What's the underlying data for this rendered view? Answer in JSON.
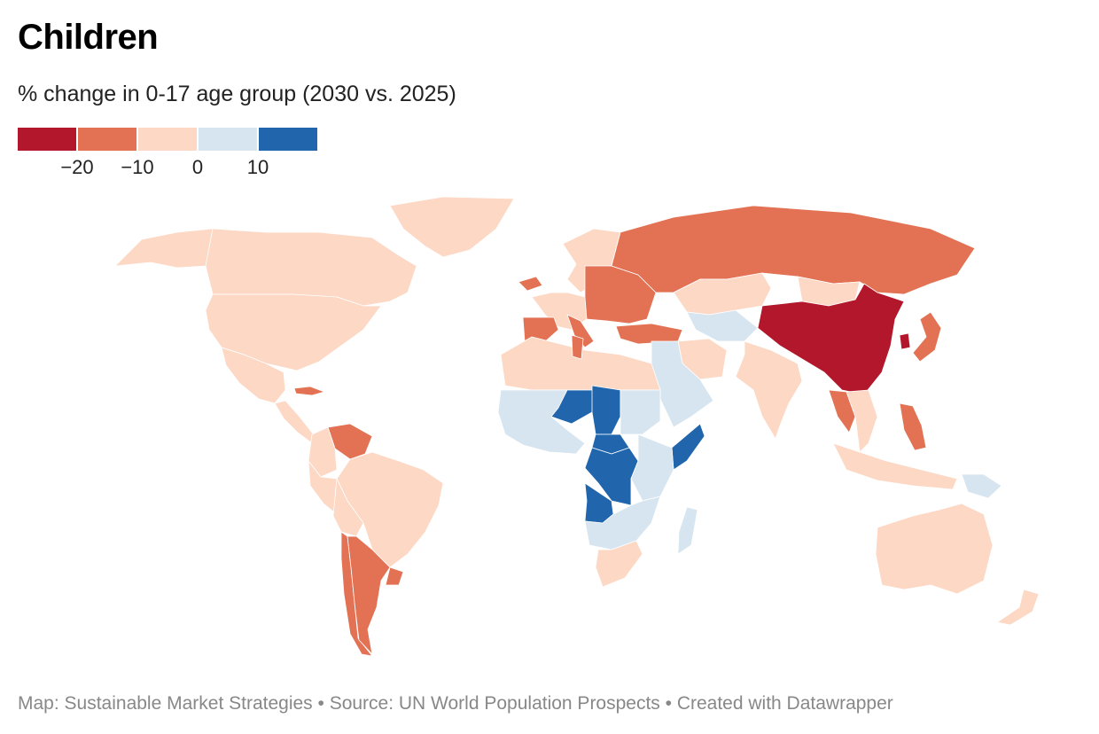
{
  "header": {
    "title": "Children",
    "subtitle": "% change in 0-17 age group (2030 vs. 2025)"
  },
  "legend": {
    "bins": [
      {
        "label": "< -20",
        "color": "#b2172b"
      },
      {
        "label": "-20 to -10",
        "color": "#e27253"
      },
      {
        "label": "-10 to 0",
        "color": "#fcd8c5"
      },
      {
        "label": "0 to 10",
        "color": "#d6e5ef"
      },
      {
        "label": "> 10",
        "color": "#2166ac"
      }
    ],
    "ticks": [
      "−20",
      "−10",
      "0",
      "10"
    ]
  },
  "map_data": {
    "type": "choropleth",
    "variable": "% change in 0-17 age group (2030 vs. 2025)",
    "regions": [
      {
        "name": "Canada",
        "bin": 2
      },
      {
        "name": "United States",
        "bin": 2
      },
      {
        "name": "Alaska",
        "bin": 2
      },
      {
        "name": "Greenland",
        "bin": 2
      },
      {
        "name": "Mexico",
        "bin": 2
      },
      {
        "name": "Cuba",
        "bin": 1
      },
      {
        "name": "Central America",
        "bin": 2
      },
      {
        "name": "Venezuela",
        "bin": 1
      },
      {
        "name": "Colombia",
        "bin": 2
      },
      {
        "name": "Brazil",
        "bin": 2
      },
      {
        "name": "Peru",
        "bin": 2
      },
      {
        "name": "Bolivia",
        "bin": 2
      },
      {
        "name": "Chile",
        "bin": 1
      },
      {
        "name": "Argentina",
        "bin": 1
      },
      {
        "name": "Uruguay",
        "bin": 1
      },
      {
        "name": "Iceland",
        "bin": 1
      },
      {
        "name": "Scandinavia",
        "bin": 2
      },
      {
        "name": "Western Europe",
        "bin": 2
      },
      {
        "name": "Eastern Europe",
        "bin": 1
      },
      {
        "name": "Iberia",
        "bin": 1
      },
      {
        "name": "Italy",
        "bin": 1
      },
      {
        "name": "Turkey",
        "bin": 1
      },
      {
        "name": "Russia",
        "bin": 1
      },
      {
        "name": "Kazakhstan",
        "bin": 2
      },
      {
        "name": "Mongolia",
        "bin": 2
      },
      {
        "name": "China",
        "bin": 0
      },
      {
        "name": "South Korea",
        "bin": 0
      },
      {
        "name": "Japan",
        "bin": 1
      },
      {
        "name": "Central Asia",
        "bin": 3
      },
      {
        "name": "Iran",
        "bin": 2
      },
      {
        "name": "Arabian Peninsula",
        "bin": 3
      },
      {
        "name": "India",
        "bin": 2
      },
      {
        "name": "Thailand",
        "bin": 1
      },
      {
        "name": "Southeast Asia",
        "bin": 2
      },
      {
        "name": "Philippines",
        "bin": 1
      },
      {
        "name": "Indonesia",
        "bin": 2
      },
      {
        "name": "Papua New Guinea",
        "bin": 3
      },
      {
        "name": "Australia",
        "bin": 2
      },
      {
        "name": "New Zealand",
        "bin": 2
      },
      {
        "name": "North Africa",
        "bin": 2
      },
      {
        "name": "Tunisia",
        "bin": 1
      },
      {
        "name": "West Africa",
        "bin": 3
      },
      {
        "name": "Niger",
        "bin": 4
      },
      {
        "name": "Chad",
        "bin": 4
      },
      {
        "name": "Sudan",
        "bin": 3
      },
      {
        "name": "Central African Republic",
        "bin": 4
      },
      {
        "name": "DR Congo",
        "bin": 4
      },
      {
        "name": "Angola",
        "bin": 4
      },
      {
        "name": "Somalia",
        "bin": 4
      },
      {
        "name": "East Africa",
        "bin": 3
      },
      {
        "name": "Southern Africa",
        "bin": 3
      },
      {
        "name": "South Africa",
        "bin": 2
      },
      {
        "name": "Madagascar",
        "bin": 3
      }
    ]
  },
  "footer": {
    "credit": "Map: Sustainable Market Strategies • Source: UN World Population Prospects • Created with Datawrapper"
  }
}
